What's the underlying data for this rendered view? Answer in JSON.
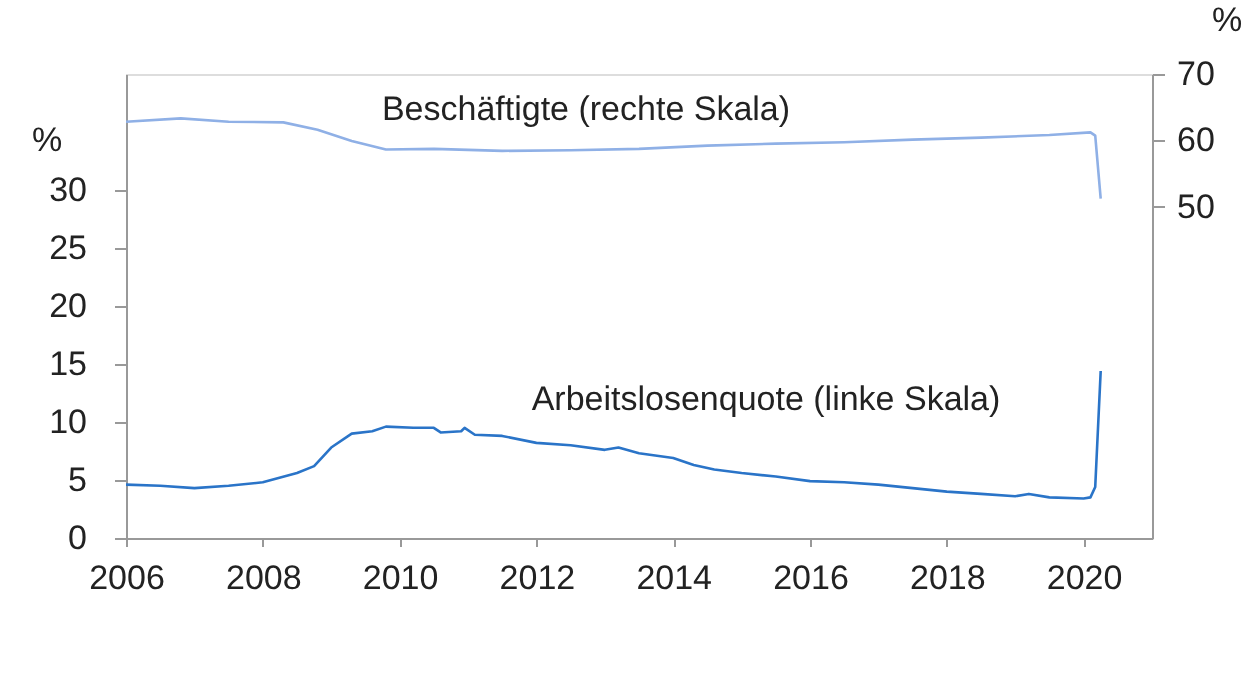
{
  "chart_data": {
    "type": "line",
    "xlim": [
      2006,
      2021
    ],
    "xticks": [
      2006,
      2008,
      2010,
      2012,
      2014,
      2016,
      2018,
      2020
    ],
    "ylim": [
      0,
      40
    ],
    "yticks": [
      0,
      5,
      10,
      15,
      20,
      25,
      30
    ],
    "ylabel": "%",
    "y2lim": [
      0,
      70
    ],
    "y2ticks": [
      50,
      60,
      70
    ],
    "y2label": "%",
    "grid": false,
    "legend": false,
    "marker": "none",
    "line_style": "solid",
    "series": [
      {
        "name": "Beschäftigte (rechte Skala)",
        "color": "#8fb0e6",
        "axis": "y2",
        "x": [
          2006,
          2006.8,
          2007.5,
          2008.3,
          2008.8,
          2009.3,
          2009.8,
          2010.5,
          2011.5,
          2012.5,
          2013.5,
          2014.5,
          2015.5,
          2016.5,
          2017.5,
          2018.5,
          2019.5,
          2020.1,
          2020.17,
          2020.25
        ],
        "values": [
          62.8,
          63.3,
          62.8,
          62.7,
          61.6,
          59.9,
          58.6,
          58.7,
          58.4,
          58.5,
          58.7,
          59.2,
          59.5,
          59.7,
          60.1,
          60.4,
          60.8,
          61.2,
          60.7,
          51.2
        ]
      },
      {
        "name": "Arbeitslosenquote (linke Skala)",
        "color": "#2a74c8",
        "x": [
          2006,
          2006.5,
          2007,
          2007.5,
          2008,
          2008.5,
          2008.75,
          2009.0,
          2009.3,
          2009.6,
          2009.8,
          2010.2,
          2010.5,
          2010.6,
          2010.9,
          2010.95,
          2011.1,
          2011.5,
          2012,
          2012.5,
          2013,
          2013.2,
          2013.5,
          2014,
          2014.3,
          2014.6,
          2015,
          2015.5,
          2016,
          2016.5,
          2017,
          2017.5,
          2018,
          2018.5,
          2019,
          2019.2,
          2019.5,
          2020.0,
          2020.1,
          2020.17,
          2020.25
        ],
        "values": [
          4.6,
          4.5,
          4.3,
          4.5,
          4.8,
          5.6,
          6.2,
          7.8,
          9.0,
          9.2,
          9.6,
          9.5,
          9.5,
          9.1,
          9.2,
          9.5,
          8.9,
          8.8,
          8.2,
          8.0,
          7.6,
          7.8,
          7.3,
          6.9,
          6.3,
          5.9,
          5.6,
          5.3,
          4.9,
          4.8,
          4.6,
          4.3,
          4.0,
          3.8,
          3.6,
          3.8,
          3.5,
          3.4,
          3.5,
          4.4,
          14.4
        ]
      }
    ]
  }
}
